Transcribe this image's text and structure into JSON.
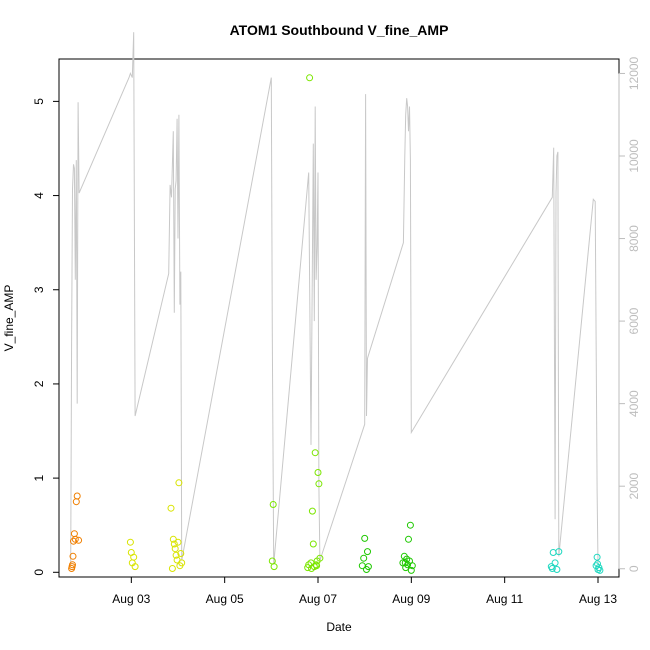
{
  "chart_data": {
    "type": "scatter",
    "title": "ATOM1 Southbound V_fine_AMP",
    "xlabel": "Date",
    "ylabel": "V_fine_AMP",
    "y2label": "",
    "xlim": [
      1.45,
      13.45
    ],
    "ylim": [
      -0.05,
      5.45
    ],
    "y2lim": [
      -200,
      12350
    ],
    "x_ticks": [
      {
        "value": 3,
        "label": "Aug 03"
      },
      {
        "value": 5,
        "label": "Aug 05"
      },
      {
        "value": 7,
        "label": "Aug 07"
      },
      {
        "value": 9,
        "label": "Aug 09"
      },
      {
        "value": 11,
        "label": "Aug 11"
      },
      {
        "value": 13,
        "label": "Aug 13"
      }
    ],
    "y_ticks": [
      0,
      1,
      2,
      3,
      4,
      5
    ],
    "y2_ticks": [
      0,
      2000,
      4000,
      6000,
      8000,
      10000,
      12000
    ],
    "line_color": "#c8c8c8",
    "series": [
      {
        "color": "#f07f00",
        "points": [
          [
            1.72,
            0.04
          ],
          [
            1.73,
            0.06
          ],
          [
            1.74,
            0.08
          ],
          [
            1.75,
            0.17
          ],
          [
            1.76,
            0.33
          ],
          [
            1.78,
            0.41
          ],
          [
            1.8,
            0.35
          ],
          [
            1.82,
            0.75
          ],
          [
            1.84,
            0.81
          ],
          [
            1.87,
            0.34
          ]
        ]
      },
      {
        "color": "#d9e400",
        "points": [
          [
            2.98,
            0.32
          ],
          [
            3.0,
            0.21
          ],
          [
            3.02,
            0.1
          ],
          [
            3.05,
            0.16
          ],
          [
            3.08,
            0.06
          ],
          [
            3.85,
            0.68
          ],
          [
            3.88,
            0.04
          ],
          [
            3.9,
            0.35
          ],
          [
            3.92,
            0.3
          ],
          [
            3.94,
            0.25
          ],
          [
            3.96,
            0.18
          ],
          [
            3.98,
            0.13
          ],
          [
            4.0,
            0.32
          ],
          [
            4.02,
            0.95
          ],
          [
            4.04,
            0.07
          ],
          [
            4.06,
            0.2
          ],
          [
            4.08,
            0.1
          ]
        ]
      },
      {
        "color": "#7be600",
        "points": [
          [
            6.02,
            0.12
          ],
          [
            6.04,
            0.72
          ],
          [
            6.06,
            0.06
          ],
          [
            6.82,
            5.25
          ],
          [
            6.78,
            0.05
          ],
          [
            6.85,
            0.1
          ],
          [
            6.88,
            0.65
          ],
          [
            6.9,
            0.3
          ],
          [
            6.92,
            0.06
          ],
          [
            6.94,
            1.27
          ],
          [
            6.96,
            0.08
          ],
          [
            6.98,
            0.12
          ],
          [
            7.0,
            1.06
          ],
          [
            7.02,
            0.94
          ],
          [
            7.04,
            0.15
          ],
          [
            6.8,
            0.08
          ],
          [
            6.86,
            0.04
          ],
          [
            6.97,
            0.07
          ]
        ]
      },
      {
        "color": "#1ec800",
        "points": [
          [
            7.95,
            0.07
          ],
          [
            7.98,
            0.15
          ],
          [
            8.0,
            0.36
          ],
          [
            8.04,
            0.03
          ],
          [
            8.06,
            0.22
          ],
          [
            8.08,
            0.06
          ],
          [
            8.82,
            0.1
          ],
          [
            8.85,
            0.17
          ],
          [
            8.88,
            0.05
          ],
          [
            8.9,
            0.14
          ],
          [
            8.92,
            0.08
          ],
          [
            8.94,
            0.35
          ],
          [
            8.96,
            0.12
          ],
          [
            8.98,
            0.5
          ],
          [
            9.0,
            0.02
          ],
          [
            9.02,
            0.07
          ],
          [
            8.87,
            0.1
          ]
        ]
      },
      {
        "color": "#20d8c0",
        "points": [
          [
            12.0,
            0.06
          ],
          [
            12.04,
            0.21
          ],
          [
            12.08,
            0.1
          ],
          [
            12.12,
            0.03
          ],
          [
            12.16,
            0.22
          ],
          [
            12.02,
            0.04
          ],
          [
            12.96,
            0.07
          ],
          [
            12.98,
            0.16
          ],
          [
            13.0,
            0.03
          ],
          [
            13.02,
            0.05
          ],
          [
            13.04,
            0.02
          ],
          [
            12.99,
            0.09
          ]
        ]
      }
    ],
    "secondary_line": [
      [
        1.7,
        100
      ],
      [
        1.72,
        5500
      ],
      [
        1.74,
        9200
      ],
      [
        1.76,
        9800
      ],
      [
        1.78,
        9700
      ],
      [
        1.8,
        7000
      ],
      [
        1.82,
        9900
      ],
      [
        1.84,
        4000
      ],
      [
        1.86,
        11300
      ],
      [
        1.88,
        9100
      ],
      [
        2.95,
        11900
      ],
      [
        2.98,
        12000
      ],
      [
        3.02,
        11900
      ],
      [
        3.05,
        13000
      ],
      [
        3.08,
        3700
      ],
      [
        3.8,
        7150
      ],
      [
        3.83,
        9300
      ],
      [
        3.86,
        9000
      ],
      [
        3.88,
        9800
      ],
      [
        3.9,
        10600
      ],
      [
        3.92,
        6200
      ],
      [
        3.94,
        9200
      ],
      [
        3.96,
        9400
      ],
      [
        3.98,
        10900
      ],
      [
        4.0,
        8000
      ],
      [
        4.02,
        11000
      ],
      [
        4.04,
        6400
      ],
      [
        4.06,
        7200
      ],
      [
        4.08,
        200
      ],
      [
        6.0,
        11900
      ],
      [
        6.02,
        5700
      ],
      [
        6.05,
        100
      ],
      [
        6.8,
        9600
      ],
      [
        6.82,
        7000
      ],
      [
        6.85,
        3000
      ],
      [
        6.88,
        7500
      ],
      [
        6.9,
        10300
      ],
      [
        6.92,
        6000
      ],
      [
        6.94,
        11200
      ],
      [
        6.96,
        7000
      ],
      [
        6.98,
        7800
      ],
      [
        7.0,
        9600
      ],
      [
        7.02,
        2000
      ],
      [
        7.04,
        200
      ],
      [
        8.0,
        3500
      ],
      [
        8.02,
        11500
      ],
      [
        8.04,
        3700
      ],
      [
        8.06,
        5100
      ],
      [
        8.83,
        7900
      ],
      [
        8.86,
        10000
      ],
      [
        8.88,
        11000
      ],
      [
        8.9,
        11400
      ],
      [
        8.92,
        11200
      ],
      [
        8.94,
        10600
      ],
      [
        8.96,
        11200
      ],
      [
        8.98,
        9900
      ],
      [
        9.0,
        3300
      ],
      [
        12.02,
        9000
      ],
      [
        12.05,
        10200
      ],
      [
        12.08,
        1200
      ],
      [
        12.1,
        9100
      ],
      [
        12.12,
        10000
      ],
      [
        12.14,
        10100
      ],
      [
        12.16,
        300
      ],
      [
        12.9,
        8950
      ],
      [
        12.94,
        8900
      ],
      [
        12.98,
        1900
      ],
      [
        13.0,
        100
      ]
    ]
  }
}
